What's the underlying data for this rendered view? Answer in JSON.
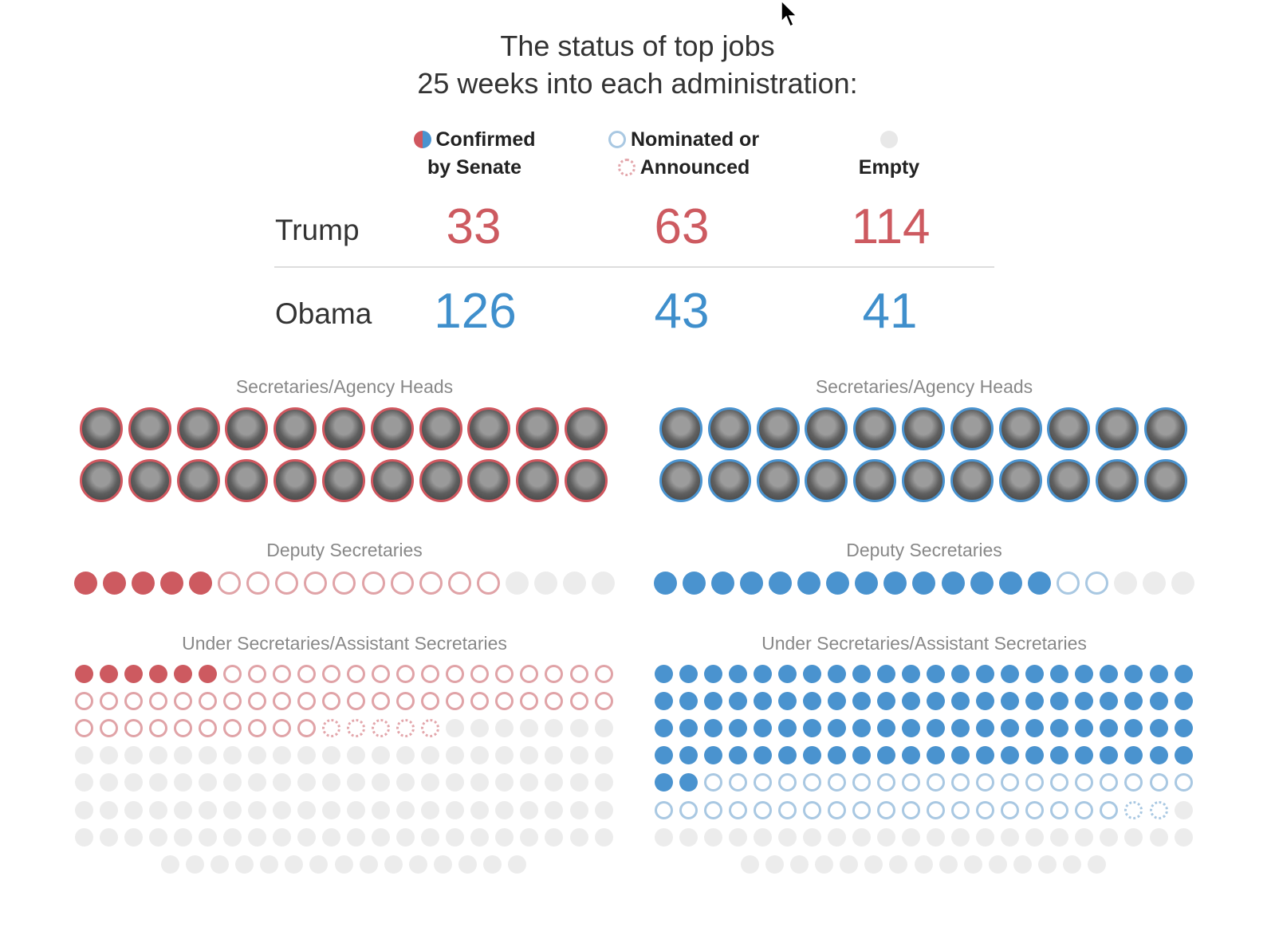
{
  "title": {
    "line1": "The status of top jobs",
    "line2": "25 weeks into each administration:"
  },
  "legend": {
    "confirmed_line1": "Confirmed",
    "confirmed_line2": "by Senate",
    "nominated_line1": "Nominated or",
    "nominated_line2": "Announced",
    "empty": "Empty"
  },
  "colors": {
    "trump_confirmed": "#cd5a60",
    "trump_nominated": "#e0a3a7",
    "obama_confirmed": "#4a93cf",
    "obama_nominated": "#a9c8e2",
    "empty": "#ececec"
  },
  "summary": {
    "trump": {
      "label": "Trump",
      "confirmed": "33",
      "nominated": "63",
      "empty": "114"
    },
    "obama": {
      "label": "Obama",
      "confirmed": "126",
      "nominated": "43",
      "empty": "41"
    }
  },
  "sections": {
    "heads_title": "Secretaries/Agency Heads",
    "deputy_title": "Deputy Secretaries",
    "under_title": "Under Secretaries/Assistant Secretaries"
  },
  "chart_data": {
    "type": "table",
    "title": "The status of top jobs 25 weeks into each administration:",
    "columns": [
      "Confirmed by Senate",
      "Nominated or Announced",
      "Empty"
    ],
    "rows": [
      {
        "name": "Trump",
        "values": [
          33,
          63,
          114
        ]
      },
      {
        "name": "Obama",
        "values": [
          126,
          43,
          41
        ]
      }
    ],
    "groups": {
      "Secretaries/Agency Heads": {
        "Trump": {
          "confirmed": 22,
          "nominated": 0,
          "announced": 0,
          "empty": 0
        },
        "Obama": {
          "confirmed": 22,
          "nominated": 0,
          "announced": 0,
          "empty": 0
        }
      },
      "Deputy Secretaries": {
        "Trump": {
          "confirmed": 5,
          "nominated": 10,
          "announced": 0,
          "empty": 4
        },
        "Obama": {
          "confirmed": 14,
          "nominated": 2,
          "announced": 0,
          "empty": 3
        }
      },
      "Under Secretaries/Assistant Secretaries": {
        "Trump": {
          "confirmed": 6,
          "nominated": 48,
          "announced": 5,
          "empty": 110
        },
        "Obama": {
          "confirmed": 90,
          "nominated": 39,
          "announced": 2,
          "empty": 38
        }
      }
    }
  }
}
